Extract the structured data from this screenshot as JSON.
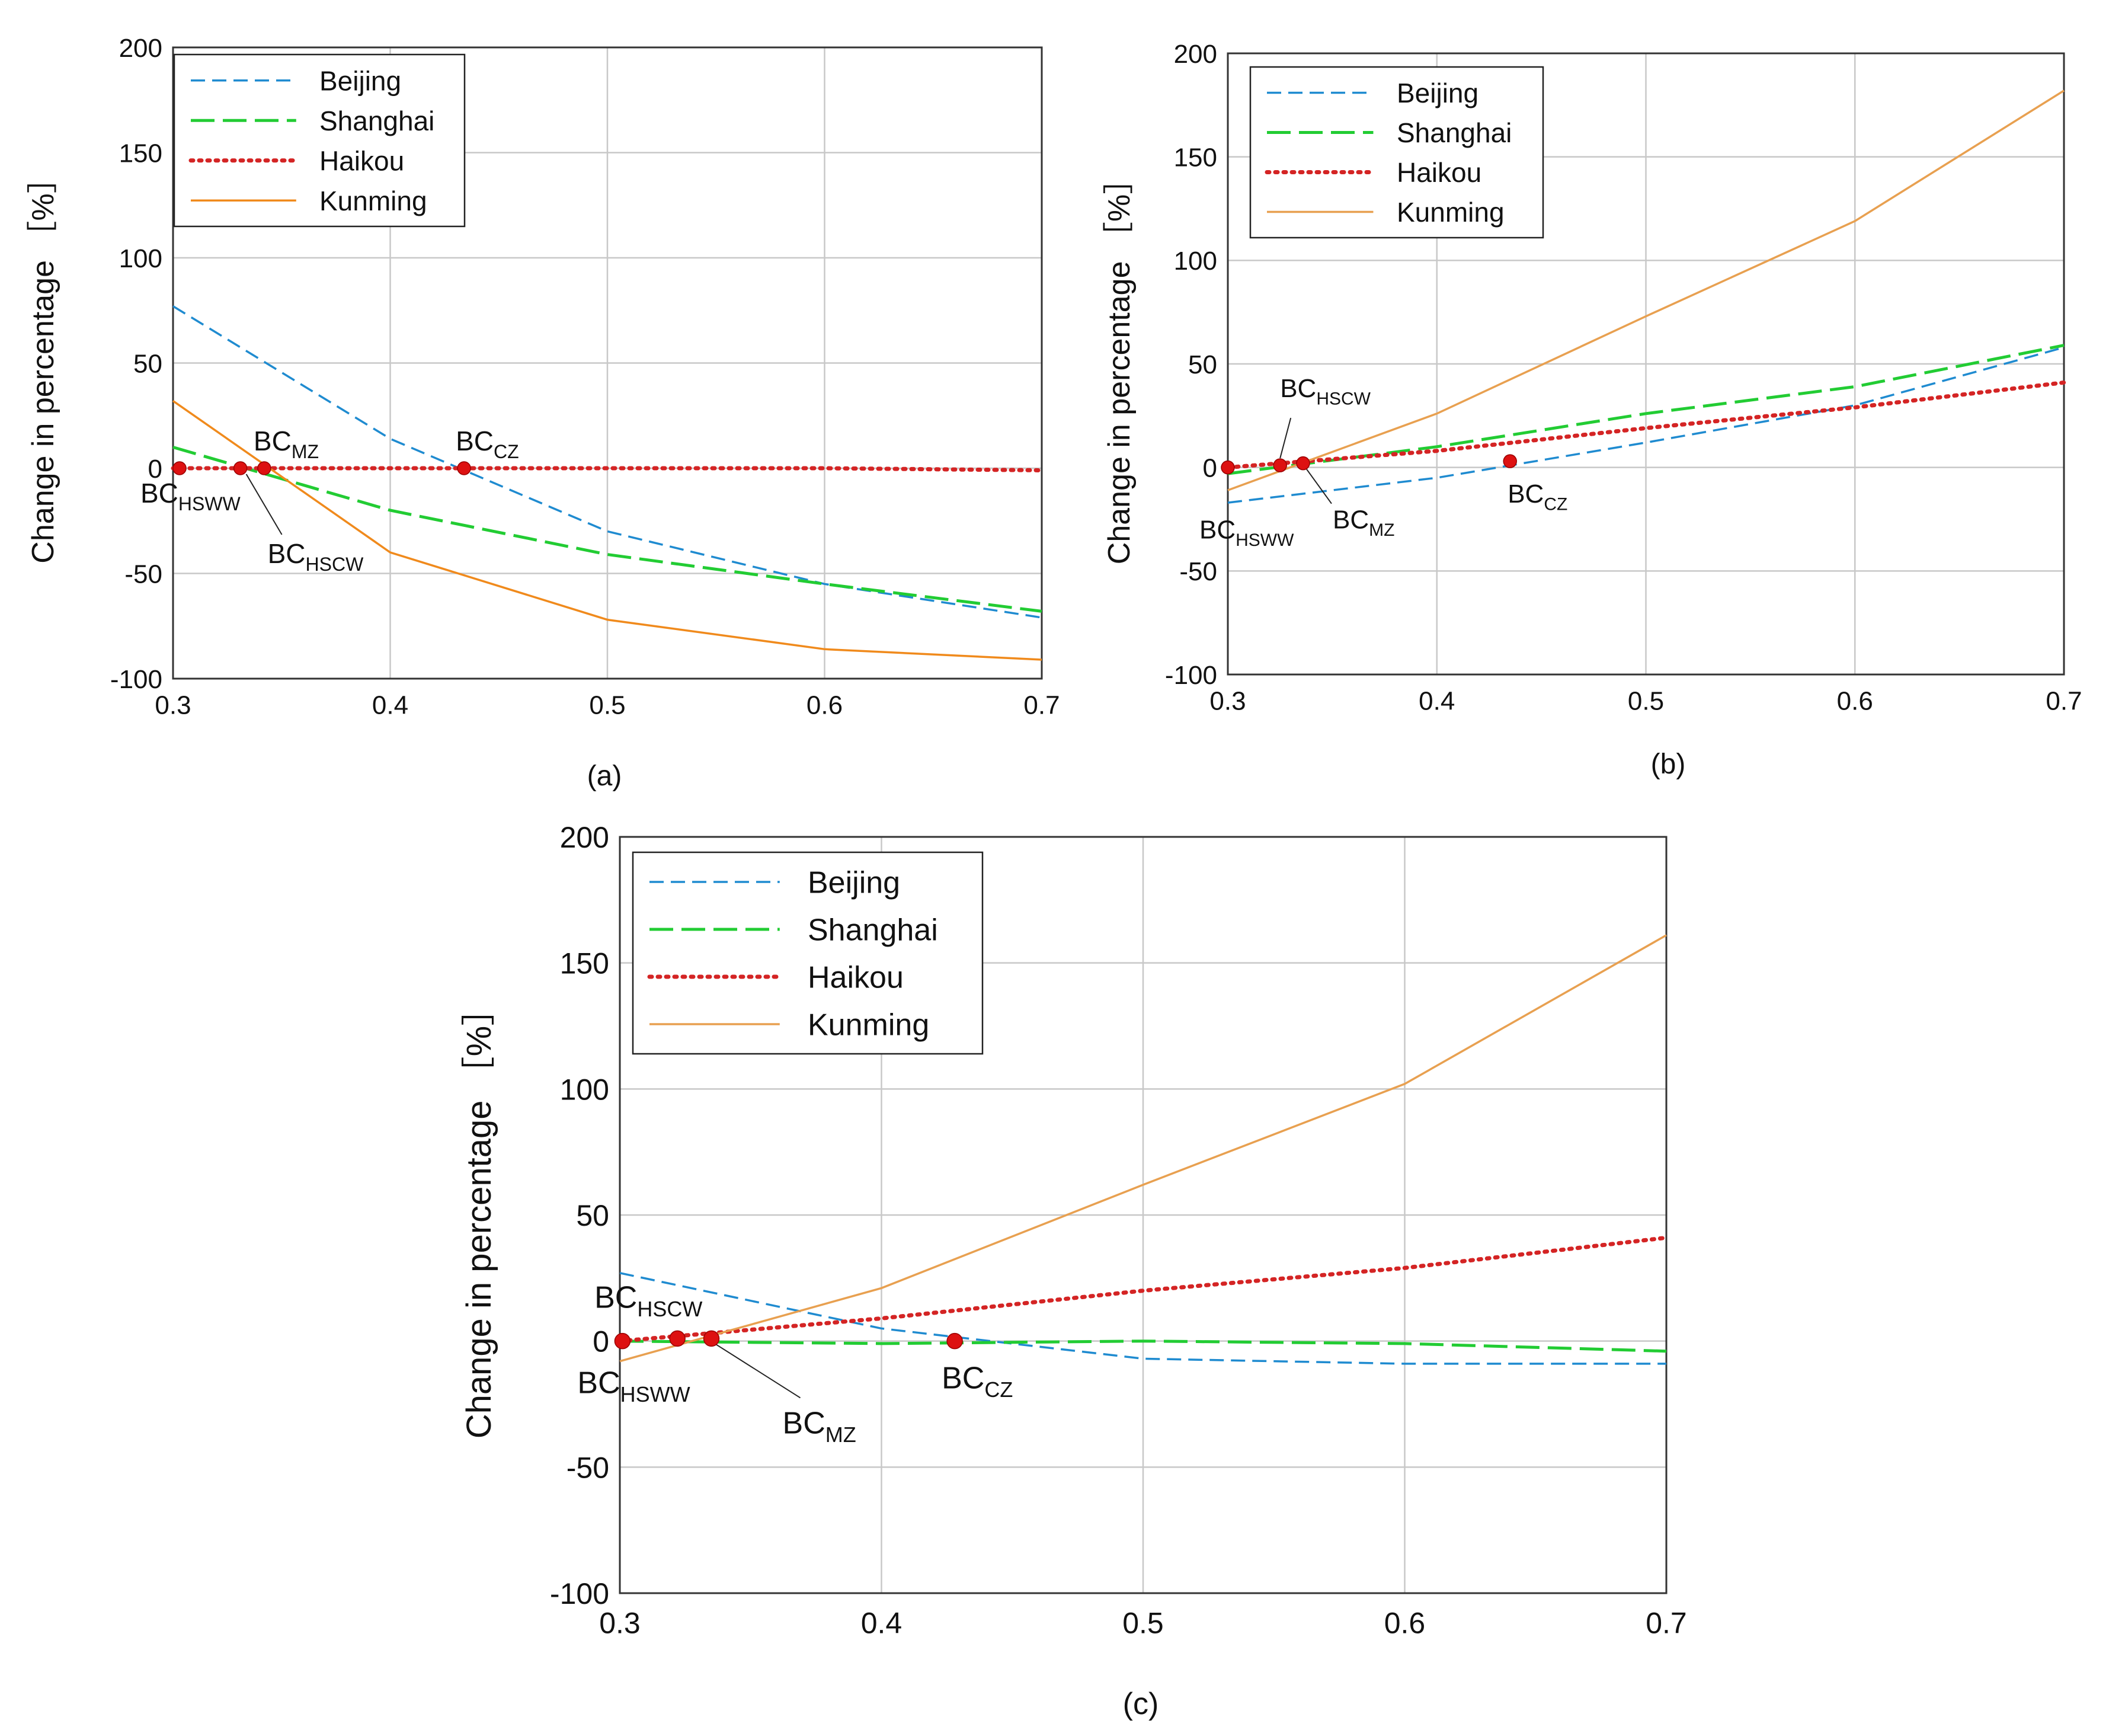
{
  "chart_data": [
    {
      "type": "line",
      "panel_label": "(a)",
      "ylabel": "Change in percentage ［%］",
      "xlim": [
        0.3,
        0.7
      ],
      "ylim": [
        -100,
        200
      ],
      "x_ticks": [
        "0.3",
        "0.4",
        "0.5",
        "0.6",
        "0.7"
      ],
      "y_ticks": [
        "200",
        "150",
        "100",
        "50",
        "0",
        "-50",
        "-100"
      ],
      "grid": true,
      "legend_position": "top-left",
      "series": [
        {
          "name": "Beijing",
          "color": "#1f8bd0",
          "style": "dash",
          "points": [
            [
              0.3,
              77
            ],
            [
              0.4,
              14
            ],
            [
              0.5,
              -30
            ],
            [
              0.6,
              -55
            ],
            [
              0.7,
              -71
            ]
          ]
        },
        {
          "name": "Shanghai",
          "color": "#22cc33",
          "style": "longdash",
          "points": [
            [
              0.3,
              10
            ],
            [
              0.4,
              -20
            ],
            [
              0.5,
              -41
            ],
            [
              0.6,
              -55
            ],
            [
              0.7,
              -68
            ]
          ]
        },
        {
          "name": "Haikou",
          "color": "#d42424",
          "style": "dot",
          "points": [
            [
              0.3,
              0
            ],
            [
              0.4,
              0
            ],
            [
              0.5,
              0
            ],
            [
              0.6,
              0
            ],
            [
              0.7,
              -1
            ]
          ]
        },
        {
          "name": "Kunming",
          "color": "#f08a1c",
          "style": "solid",
          "points": [
            [
              0.3,
              32
            ],
            [
              0.4,
              -40
            ],
            [
              0.5,
              -72
            ],
            [
              0.6,
              -86
            ],
            [
              0.7,
              -91
            ]
          ]
        }
      ],
      "markers": [
        {
          "label": "BC",
          "sub": "HSWW",
          "x": 0.303,
          "y": 0
        },
        {
          "label": "BC",
          "sub": "HSCW",
          "x": 0.331,
          "y": 0
        },
        {
          "label": "BC",
          "sub": "MZ",
          "x": 0.342,
          "y": 0
        },
        {
          "label": "BC",
          "sub": "CZ",
          "x": 0.434,
          "y": 0
        }
      ]
    },
    {
      "type": "line",
      "panel_label": "(b)",
      "ylabel": "Change in percentage ［%］",
      "xlim": [
        0.3,
        0.7
      ],
      "ylim": [
        -100,
        200
      ],
      "x_ticks": [
        "0.3",
        "0.4",
        "0.5",
        "0.6",
        "0.7"
      ],
      "y_ticks": [
        "200",
        "150",
        "100",
        "50",
        "0",
        "-50",
        "-100"
      ],
      "grid": true,
      "legend_position": "top-left",
      "series": [
        {
          "name": "Beijing",
          "color": "#1f8bd0",
          "style": "dash",
          "points": [
            [
              0.3,
              -17
            ],
            [
              0.4,
              -5
            ],
            [
              0.5,
              12
            ],
            [
              0.6,
              30
            ],
            [
              0.7,
              58
            ]
          ]
        },
        {
          "name": "Shanghai",
          "color": "#22cc33",
          "style": "longdash",
          "points": [
            [
              0.3,
              -3
            ],
            [
              0.4,
              10
            ],
            [
              0.5,
              26
            ],
            [
              0.6,
              39
            ],
            [
              0.7,
              59
            ]
          ]
        },
        {
          "name": "Haikou",
          "color": "#d42424",
          "style": "dot",
          "points": [
            [
              0.3,
              0
            ],
            [
              0.4,
              8
            ],
            [
              0.5,
              19
            ],
            [
              0.6,
              29
            ],
            [
              0.7,
              41
            ]
          ]
        },
        {
          "name": "Kunming",
          "color": "#e8a050",
          "style": "solid",
          "points": [
            [
              0.3,
              -11
            ],
            [
              0.4,
              26
            ],
            [
              0.5,
              73
            ],
            [
              0.6,
              119
            ],
            [
              0.7,
              182
            ]
          ]
        }
      ],
      "markers": [
        {
          "label": "BC",
          "sub": "HSWW",
          "x": 0.3,
          "y": 0
        },
        {
          "label": "BC",
          "sub": "HSCW",
          "x": 0.325,
          "y": 1
        },
        {
          "label": "BC",
          "sub": "MZ",
          "x": 0.336,
          "y": 2
        },
        {
          "label": "BC",
          "sub": "CZ",
          "x": 0.435,
          "y": 3
        }
      ]
    },
    {
      "type": "line",
      "panel_label": "(c)",
      "ylabel": "Change in percentage ［%］",
      "xlim": [
        0.3,
        0.7
      ],
      "ylim": [
        -100,
        200
      ],
      "x_ticks": [
        "0.3",
        "0.4",
        "0.5",
        "0.6",
        "0.7"
      ],
      "y_ticks": [
        "200",
        "150",
        "100",
        "50",
        "0",
        "-50",
        "-100"
      ],
      "grid": true,
      "legend_position": "top-left",
      "series": [
        {
          "name": "Beijing",
          "color": "#1f8bd0",
          "style": "dash",
          "points": [
            [
              0.3,
              27
            ],
            [
              0.4,
              5
            ],
            [
              0.5,
              -7
            ],
            [
              0.6,
              -9
            ],
            [
              0.7,
              -9
            ]
          ]
        },
        {
          "name": "Shanghai",
          "color": "#22cc33",
          "style": "longdash",
          "points": [
            [
              0.3,
              0
            ],
            [
              0.4,
              -1
            ],
            [
              0.5,
              0
            ],
            [
              0.6,
              -1
            ],
            [
              0.7,
              -4
            ]
          ]
        },
        {
          "name": "Haikou",
          "color": "#d42424",
          "style": "dot",
          "points": [
            [
              0.3,
              0
            ],
            [
              0.4,
              9
            ],
            [
              0.5,
              20
            ],
            [
              0.6,
              29
            ],
            [
              0.7,
              41
            ]
          ]
        },
        {
          "name": "Kunming",
          "color": "#e8a050",
          "style": "solid",
          "points": [
            [
              0.3,
              -8
            ],
            [
              0.4,
              21
            ],
            [
              0.5,
              62
            ],
            [
              0.6,
              102
            ],
            [
              0.7,
              161
            ]
          ]
        }
      ],
      "markers": [
        {
          "label": "BC",
          "sub": "HSWW",
          "x": 0.301,
          "y": 0
        },
        {
          "label": "BC",
          "sub": "HSCW",
          "x": 0.322,
          "y": 1
        },
        {
          "label": "BC",
          "sub": "MZ",
          "x": 0.335,
          "y": 1
        },
        {
          "label": "BC",
          "sub": "CZ",
          "x": 0.428,
          "y": 0
        }
      ]
    }
  ]
}
